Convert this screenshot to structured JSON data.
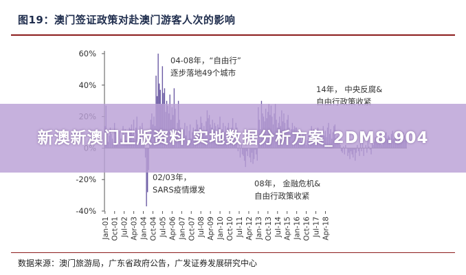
{
  "header": {
    "title": "图19：澳门签证政策对赴澳门游客人次的影响"
  },
  "footer": {
    "source": "数据来源：澳门旅游局，广东省政府公告，广发证券发展研究中心"
  },
  "overlay": {
    "text": "新澳新澳门正版资料,实地数据分析方案_2DM8.904"
  },
  "colors": {
    "bar": "#6b5aa3",
    "axis": "#555555",
    "text": "#333333"
  },
  "chart_data": {
    "type": "bar",
    "title": "",
    "xlabel": "",
    "ylabel": "",
    "ylim": [
      -40,
      60
    ],
    "yticks": [
      "60%",
      "40%",
      "20%",
      "0%",
      "-20%",
      "-40%"
    ],
    "ytick_values": [
      60,
      40,
      20,
      0,
      -20,
      -40
    ],
    "x_tick_labels": [
      "Jan-01",
      "Oct-01",
      "Jul-02",
      "Apr-03",
      "Jan-04",
      "Oct-04",
      "Jul-05",
      "Apr-06",
      "Jan-07",
      "Oct-07",
      "Jul-08",
      "Apr-09",
      "Jan-10",
      "Oct-10",
      "Jul-11",
      "Apr-12",
      "Jan-13",
      "Oct-13",
      "Jul-14",
      "Apr-15",
      "Jan-16",
      "Oct-16",
      "Jul-17",
      "Apr-18"
    ],
    "x_start": "2001-01",
    "annotations": [
      {
        "id": "ann-2003",
        "lines": [
          "02/03年，",
          "SARS疫情爆发"
        ]
      },
      {
        "id": "ann-2004",
        "lines": [
          "04-08年，“自由行”",
          "逐步落地49个城市"
        ]
      },
      {
        "id": "ann-2008",
        "lines": [
          "08年，  金融危机&",
          "自由行政策收紧"
        ]
      },
      {
        "id": "ann-2014",
        "lines": [
          "14年，  中央反腐&",
          "自由行政策收紧"
        ]
      }
    ],
    "values": [
      14,
      27,
      11,
      4,
      8,
      13,
      9,
      6,
      2,
      16,
      10,
      7,
      9,
      2,
      11,
      6,
      3,
      14,
      8,
      12,
      5,
      10,
      7,
      13,
      12,
      15,
      9,
      18,
      6,
      13,
      20,
      9,
      11,
      14,
      7,
      16,
      8,
      2,
      -6,
      -37,
      -28,
      -14,
      3,
      18,
      22,
      15,
      20,
      14,
      46,
      33,
      60,
      41,
      37,
      28,
      52,
      35,
      38,
      23,
      30,
      27,
      22,
      34,
      18,
      26,
      21,
      38,
      25,
      12,
      16,
      30,
      18,
      13,
      9,
      6,
      12,
      16,
      8,
      14,
      5,
      11,
      15,
      6,
      10,
      13,
      7,
      12,
      18,
      15,
      9,
      13,
      20,
      16,
      10,
      14,
      8,
      17,
      24,
      19,
      21,
      15,
      13,
      18,
      12,
      16,
      14,
      11,
      15,
      13,
      20,
      8,
      12,
      16,
      10,
      14,
      8,
      13,
      16,
      11,
      6,
      13,
      19,
      5,
      10,
      16,
      13,
      -2,
      3,
      -6,
      2,
      -4,
      -5,
      -8,
      -12,
      -2,
      -5,
      0,
      -6,
      -9,
      -3,
      -10,
      -7,
      -1,
      -4,
      -8,
      26,
      18,
      12,
      30,
      22,
      20,
      17,
      25,
      19,
      23,
      28,
      21,
      27,
      20,
      15,
      22,
      28,
      18,
      13,
      16,
      20,
      14,
      24,
      17,
      22,
      16,
      11,
      18,
      21,
      13,
      10,
      12,
      16,
      12,
      14,
      13,
      13,
      6,
      9,
      10,
      7,
      4,
      10,
      6,
      9,
      2,
      5,
      8,
      11,
      3,
      14,
      7,
      12,
      10,
      5,
      9,
      13,
      6,
      11,
      8,
      10,
      14,
      8,
      11,
      7,
      13,
      16,
      9,
      12,
      6,
      10,
      14,
      15,
      6,
      8,
      3,
      5,
      2,
      -2,
      -3,
      1,
      -4,
      2,
      0,
      -5,
      -3,
      -7,
      -2,
      -4,
      -6,
      -1,
      -8,
      -3,
      2,
      -2,
      -5,
      3,
      -2,
      4,
      -5,
      0,
      2,
      -3,
      5,
      1,
      -1,
      -4,
      3,
      2,
      4,
      7,
      5,
      3,
      6,
      9,
      5,
      2,
      8,
      4,
      6,
      10,
      6,
      8,
      7,
      5,
      9,
      11,
      6,
      8,
      7,
      5,
      4,
      8,
      6,
      9,
      7,
      10,
      8,
      5,
      7
    ]
  }
}
